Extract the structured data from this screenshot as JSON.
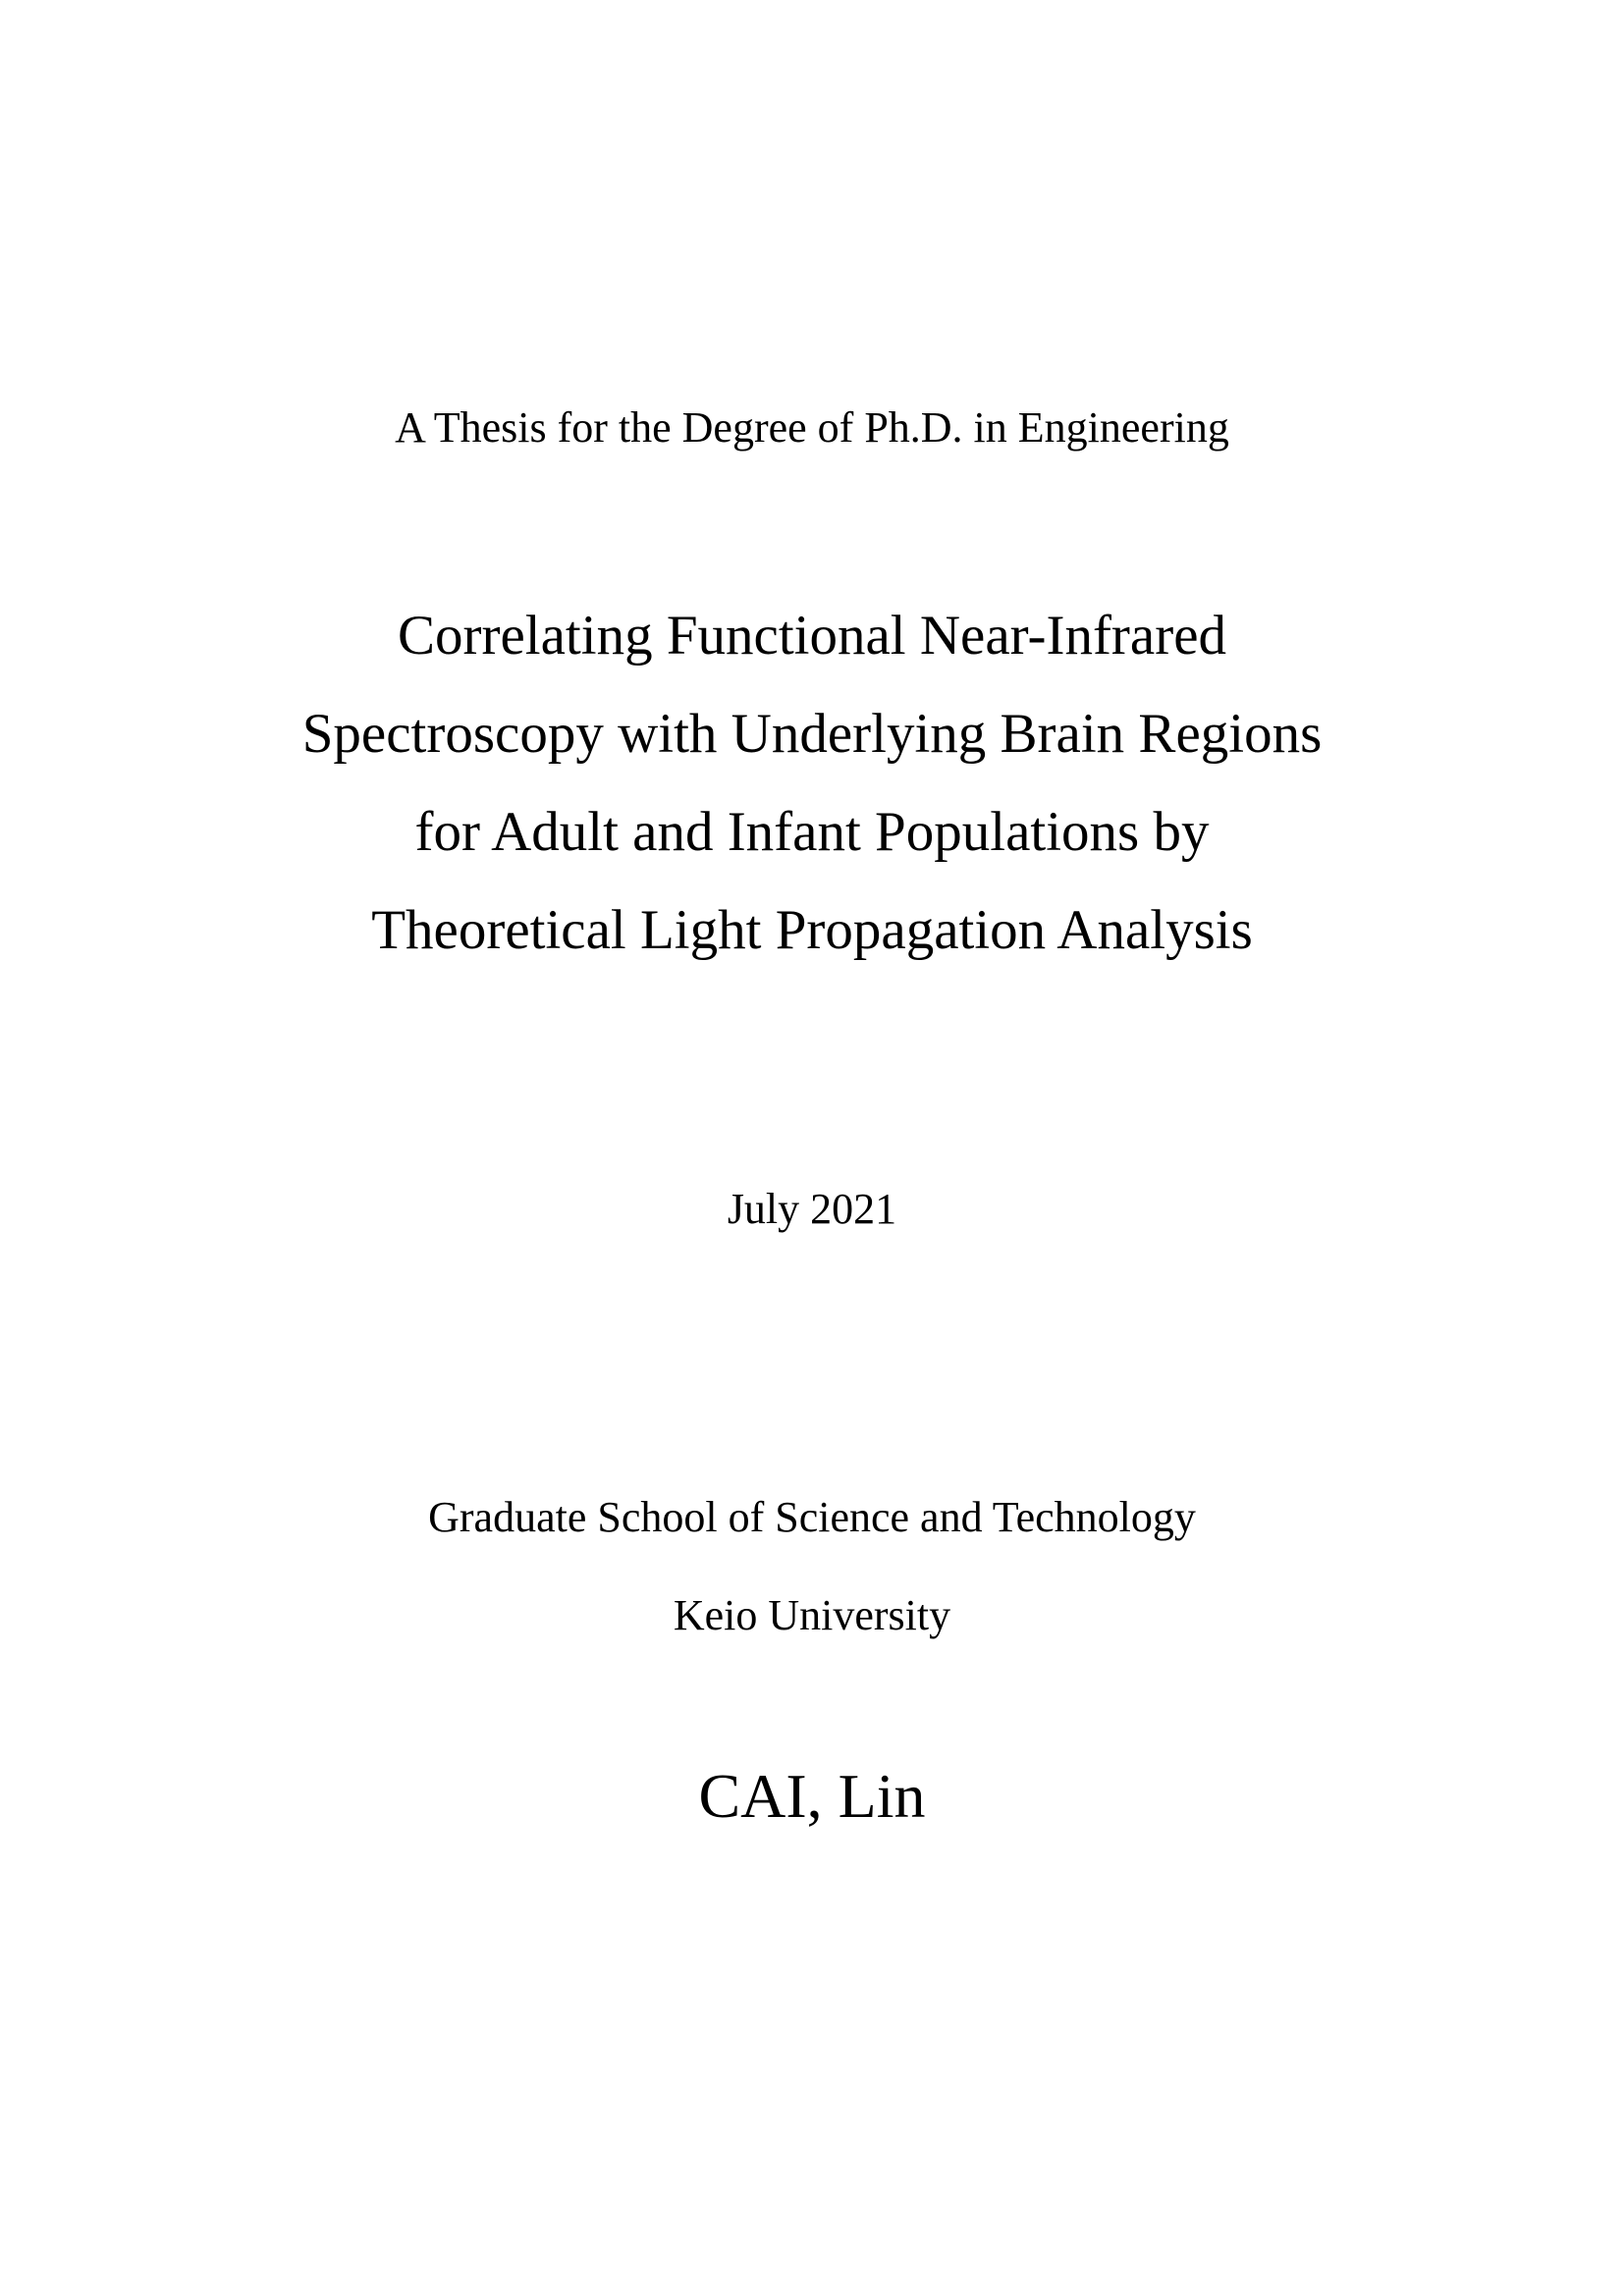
{
  "page": {
    "degree_statement": "A Thesis for the Degree of Ph.D. in Engineering",
    "title_lines": {
      "0": "Correlating Functional Near-Infrared",
      "1": "Spectroscopy with Underlying Brain Regions",
      "2": "for Adult and Infant Populations by",
      "3": "Theoretical Light Propagation Analysis"
    },
    "date": "July 2021",
    "school": "Graduate School of Science and Technology",
    "university": "Keio University",
    "author": "CAI, Lin",
    "colors": {
      "background": "#ffffff",
      "text": "#000000"
    }
  }
}
